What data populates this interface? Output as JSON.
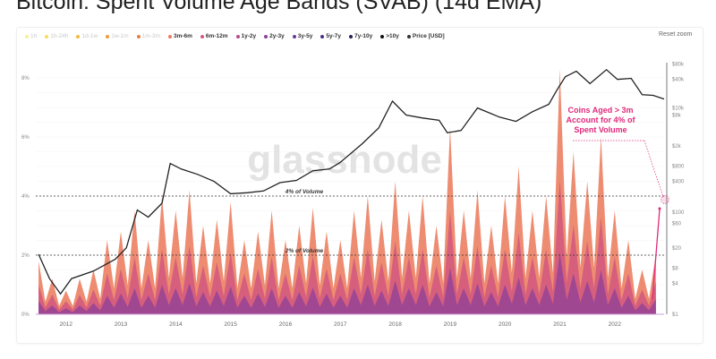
{
  "title": "Bitcoin: Spent Volume Age Bands (SVAB) (14d EMA)",
  "reset_zoom": "Reset zoom",
  "watermark": "glassnode",
  "legend": [
    {
      "label": "1h",
      "color": "#f7ef9a",
      "active": false
    },
    {
      "label": "1h-24h",
      "color": "#f5df5a",
      "active": false
    },
    {
      "label": "1d-1w",
      "color": "#f2b93b",
      "active": false
    },
    {
      "label": "1w-1m",
      "color": "#ee9a3a",
      "active": false
    },
    {
      "label": "1m-3m",
      "color": "#e7803f",
      "active": false
    },
    {
      "label": "3m-6m",
      "color": "#ec7a5e",
      "active": true
    },
    {
      "label": "6m-12m",
      "color": "#d8577a",
      "active": true
    },
    {
      "label": "1y-2y",
      "color": "#b84a8c",
      "active": true
    },
    {
      "label": "2y-3y",
      "color": "#8e3f9b",
      "active": true
    },
    {
      "label": "3y-5y",
      "color": "#6a3a9a",
      "active": true
    },
    {
      "label": "5y-7y",
      "color": "#4b2d85",
      "active": true
    },
    {
      "label": "7y-10y",
      "color": "#2a1d55",
      "active": true
    },
    {
      "label": ">10y",
      "color": "#111111",
      "active": true
    },
    {
      "label": "Price [USD]",
      "color": "#333333",
      "active": true
    }
  ],
  "annotation": {
    "text": "Coins Aged > 3m Account for 4% of Spent Volume",
    "color": "#e0297a"
  },
  "chart_data": {
    "type": "area",
    "title": "Bitcoin: Spent Volume Age Bands (SVAB) (14d EMA)",
    "xlim": [
      2011.45,
      2022.9
    ],
    "x_ticks": [
      "2012",
      "2013",
      "2014",
      "2015",
      "2016",
      "2017",
      "2018",
      "2019",
      "2020",
      "2021",
      "2022"
    ],
    "y_left": {
      "ticks": [
        "0%",
        "2%",
        "4%",
        "6%",
        "8%"
      ],
      "lim": [
        0,
        8.4
      ]
    },
    "y_right": {
      "scale": "log",
      "ticks": [
        {
          "label": "$1",
          "v": 1
        },
        {
          "label": "$4",
          "v": 4
        },
        {
          "label": "$8",
          "v": 8
        },
        {
          "label": "$20",
          "v": 20
        },
        {
          "label": "$60",
          "v": 60
        },
        {
          "label": "$100",
          "v": 100
        },
        {
          "label": "$400",
          "v": 400
        },
        {
          "label": "$800",
          "v": 800
        },
        {
          "label": "$2k",
          "v": 2000
        },
        {
          "label": "$8k",
          "v": 8000
        },
        {
          "label": "$10k",
          "v": 10000
        },
        {
          "label": "$40k",
          "v": 40000
        },
        {
          "label": "$80k",
          "v": 80000
        }
      ],
      "lim": [
        1,
        100000
      ]
    },
    "reference_lines": [
      {
        "value": 4,
        "label": "4% of Volume"
      },
      {
        "value": 2,
        "label": "2% of Volume"
      }
    ],
    "x": [
      2011.5,
      2011.75,
      2012,
      2012.25,
      2012.5,
      2012.75,
      2013,
      2013.25,
      2013.5,
      2013.75,
      2014,
      2014.25,
      2014.5,
      2014.75,
      2015,
      2015.25,
      2015.5,
      2015.75,
      2016,
      2016.25,
      2016.5,
      2016.75,
      2017,
      2017.25,
      2017.5,
      2017.75,
      2018,
      2018.25,
      2018.5,
      2018.75,
      2019,
      2019.25,
      2019.5,
      2019.75,
      2020,
      2020.25,
      2020.5,
      2020.75,
      2021,
      2021.25,
      2021.5,
      2021.75,
      2022,
      2022.25,
      2022.5,
      2022.75
    ],
    "series": [
      {
        "name": "1y-2y",
        "color": "#9a4595",
        "values": [
          0.45,
          0.3,
          0.2,
          0.3,
          0.38,
          0.63,
          0.7,
          0.88,
          0.63,
          1.0,
          0.88,
          1.05,
          0.75,
          0.8,
          0.95,
          0.63,
          0.7,
          0.88,
          0.63,
          0.75,
          0.9,
          0.7,
          0.63,
          0.88,
          1.0,
          0.8,
          1.13,
          0.88,
          1.0,
          0.75,
          1.58,
          0.88,
          1.05,
          0.75,
          1.0,
          1.25,
          0.88,
          1.0,
          2.08,
          1.38,
          1.13,
          1.5,
          0.88,
          0.63,
          0.38,
          0.5
        ]
      },
      {
        "name": "6m-12m",
        "color": "#d35a7e",
        "values": [
          0.54,
          0.36,
          0.24,
          0.36,
          0.45,
          0.75,
          0.84,
          1.05,
          0.75,
          1.2,
          1.05,
          1.26,
          0.9,
          0.96,
          1.14,
          0.75,
          0.84,
          1.05,
          0.75,
          0.9,
          1.08,
          0.84,
          0.75,
          1.05,
          1.2,
          0.96,
          1.35,
          1.05,
          1.2,
          0.9,
          1.89,
          1.05,
          1.26,
          0.9,
          1.2,
          1.5,
          1.05,
          1.2,
          2.49,
          1.65,
          1.35,
          1.8,
          1.05,
          0.75,
          0.45,
          0.6
        ]
      },
      {
        "name": "3m-6m",
        "color": "#ec7f62",
        "values": [
          0.81,
          0.54,
          0.36,
          0.54,
          0.68,
          1.13,
          1.26,
          1.58,
          1.13,
          1.8,
          1.58,
          1.89,
          1.35,
          1.44,
          1.71,
          1.13,
          1.26,
          1.58,
          1.13,
          1.35,
          1.62,
          1.26,
          1.13,
          1.58,
          1.8,
          1.44,
          2.03,
          1.58,
          1.8,
          1.35,
          2.84,
          1.58,
          1.89,
          1.35,
          1.8,
          2.25,
          1.58,
          1.8,
          3.74,
          2.48,
          2.03,
          2.7,
          1.58,
          1.13,
          0.68,
          0.9
        ]
      }
    ],
    "price": {
      "name": "Price [USD]",
      "color": "#222222",
      "points": [
        [
          2011.5,
          15
        ],
        [
          2011.7,
          5
        ],
        [
          2011.9,
          2.5
        ],
        [
          2012.1,
          5
        ],
        [
          2012.5,
          7
        ],
        [
          2012.9,
          12
        ],
        [
          2013.1,
          20
        ],
        [
          2013.3,
          110
        ],
        [
          2013.5,
          80
        ],
        [
          2013.75,
          150
        ],
        [
          2013.9,
          900
        ],
        [
          2014.1,
          700
        ],
        [
          2014.4,
          550
        ],
        [
          2014.7,
          400
        ],
        [
          2015.0,
          230
        ],
        [
          2015.3,
          240
        ],
        [
          2015.6,
          260
        ],
        [
          2015.9,
          380
        ],
        [
          2016.2,
          420
        ],
        [
          2016.5,
          650
        ],
        [
          2016.8,
          700
        ],
        [
          2017.0,
          950
        ],
        [
          2017.4,
          2200
        ],
        [
          2017.7,
          4500
        ],
        [
          2017.95,
          15000
        ],
        [
          2018.2,
          8000
        ],
        [
          2018.5,
          7000
        ],
        [
          2018.8,
          6300
        ],
        [
          2018.95,
          3600
        ],
        [
          2019.2,
          4000
        ],
        [
          2019.5,
          11000
        ],
        [
          2019.9,
          7300
        ],
        [
          2020.2,
          6000
        ],
        [
          2020.5,
          9300
        ],
        [
          2020.8,
          13000
        ],
        [
          2020.95,
          25000
        ],
        [
          2021.1,
          45000
        ],
        [
          2021.3,
          58000
        ],
        [
          2021.55,
          33000
        ],
        [
          2021.85,
          62000
        ],
        [
          2022.05,
          40000
        ],
        [
          2022.3,
          42000
        ],
        [
          2022.5,
          20000
        ],
        [
          2022.7,
          19500
        ],
        [
          2022.9,
          16500
        ]
      ]
    }
  }
}
